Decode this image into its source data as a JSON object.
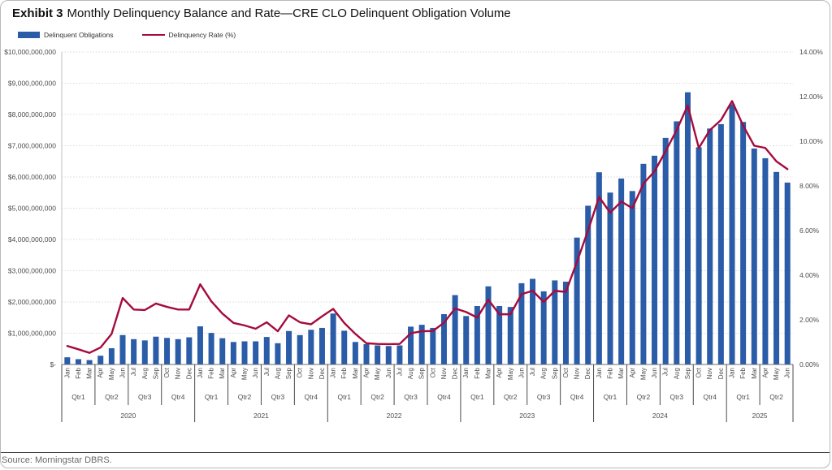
{
  "title": {
    "exhibit": "Exhibit 3",
    "text": "Monthly Delinquency Balance and Rate—CRE CLO Delinquent Obligation Volume"
  },
  "legend": {
    "items": [
      {
        "label": "Delinquent Obligations",
        "type": "bar",
        "color": "#2a5ca8"
      },
      {
        "label": "Delinquency Rate (%)",
        "type": "line",
        "color": "#a50b3d"
      }
    ]
  },
  "source": "Source: Morningstar DBRS.",
  "colors": {
    "bar": "#2a5ca8",
    "line": "#a50b3d",
    "gridline": "#dadada",
    "axis_line": "#8c8c8c",
    "separator": "#4a4a4a",
    "tick_text": "#4d4d4d"
  },
  "chart_data": {
    "type": "bar+line combo",
    "title": "Monthly Delinquency Balance and Rate—CRE CLO Delinquent Obligation Volume",
    "grid": "horizontal dotted",
    "legend_position": "top-left",
    "left_axis": {
      "unit": "USD",
      "min_billions": 0,
      "max_billions": 10,
      "ticks": [
        "$10,000,000,000",
        "$9,000,000,000",
        "$8,000,000,000",
        "$7,000,000,000",
        "$6,000,000,000",
        "$5,000,000,000",
        "$4,000,000,000",
        "$3,000,000,000",
        "$2,000,000,000",
        "$1,000,000,000",
        "$-"
      ]
    },
    "right_axis": {
      "unit": "%",
      "min_percent": 0,
      "max_percent": 14,
      "ticks": [
        "14.00%",
        "12.00%",
        "10.00%",
        "8.00%",
        "6.00%",
        "4.00%",
        "2.00%",
        "0.00%"
      ]
    },
    "years": [
      {
        "label": "2020",
        "quarters": [
          {
            "label": "Qtr1",
            "months": [
              "Jan",
              "Feb",
              "Mar"
            ]
          },
          {
            "label": "Qtr2",
            "months": [
              "Apr",
              "May",
              "Jun"
            ]
          },
          {
            "label": "Qtr3",
            "months": [
              "Jul",
              "Aug",
              "Sep"
            ]
          },
          {
            "label": "Qtr4",
            "months": [
              "Oct",
              "Nov",
              "Dec"
            ]
          }
        ]
      },
      {
        "label": "2021",
        "quarters": [
          {
            "label": "Qtr1",
            "months": [
              "Jan",
              "Feb",
              "Mar"
            ]
          },
          {
            "label": "Qtr2",
            "months": [
              "Apr",
              "May",
              "Jun"
            ]
          },
          {
            "label": "Qtr3",
            "months": [
              "Jul",
              "Aug",
              "Sep"
            ]
          },
          {
            "label": "Qtr4",
            "months": [
              "Oct",
              "Nov",
              "Dec"
            ]
          }
        ]
      },
      {
        "label": "2022",
        "quarters": [
          {
            "label": "Qtr1",
            "months": [
              "Jan",
              "Feb",
              "Mar"
            ]
          },
          {
            "label": "Qtr2",
            "months": [
              "Apr",
              "May",
              "Jun"
            ]
          },
          {
            "label": "Qtr3",
            "months": [
              "Jul",
              "Aug",
              "Sep"
            ]
          },
          {
            "label": "Qtr4",
            "months": [
              "Oct",
              "Nov",
              "Dec"
            ]
          }
        ]
      },
      {
        "label": "2023",
        "quarters": [
          {
            "label": "Qtr1",
            "months": [
              "Jan",
              "Feb",
              "Mar"
            ]
          },
          {
            "label": "Qtr2",
            "months": [
              "Apr",
              "May",
              "Jun"
            ]
          },
          {
            "label": "Qtr3",
            "months": [
              "Jul",
              "Aug",
              "Sep"
            ]
          },
          {
            "label": "Qtr4",
            "months": [
              "Oct",
              "Nov",
              "Dec"
            ]
          }
        ]
      },
      {
        "label": "2024",
        "quarters": [
          {
            "label": "Qtr1",
            "months": [
              "Jan",
              "Feb",
              "Mar"
            ]
          },
          {
            "label": "Qtr2",
            "months": [
              "Apr",
              "May",
              "Jun"
            ]
          },
          {
            "label": "Qtr3",
            "months": [
              "Jul",
              "Aug",
              "Sep"
            ]
          },
          {
            "label": "Qtr4",
            "months": [
              "Oct",
              "Nov",
              "Dec"
            ]
          }
        ]
      },
      {
        "label": "2025",
        "quarters": [
          {
            "label": "Qtr1",
            "months": [
              "Jan",
              "Feb",
              "Mar"
            ]
          },
          {
            "label": "Qtr2",
            "months": [
              "Apr",
              "May",
              "Jun"
            ]
          }
        ]
      }
    ],
    "series": [
      {
        "name": "Delinquent Obligations",
        "axis": "left",
        "unit": "USD billions",
        "values_billions": [
          0.23,
          0.17,
          0.14,
          0.28,
          0.52,
          0.94,
          0.81,
          0.77,
          0.89,
          0.85,
          0.81,
          0.87,
          1.22,
          1.01,
          0.84,
          0.72,
          0.74,
          0.74,
          0.88,
          0.68,
          1.07,
          0.94,
          1.11,
          1.17,
          1.63,
          1.08,
          0.72,
          0.65,
          0.61,
          0.59,
          0.61,
          1.21,
          1.27,
          1.17,
          1.61,
          2.22,
          1.55,
          1.87,
          2.5,
          1.87,
          1.84,
          2.6,
          2.74,
          2.34,
          2.69,
          2.65,
          4.06,
          5.08,
          6.15,
          5.5,
          5.95,
          5.55,
          6.42,
          6.68,
          7.25,
          7.78,
          8.71,
          6.95,
          7.55,
          7.69,
          8.33,
          7.76,
          6.91,
          6.6,
          6.16,
          5.82
        ]
      },
      {
        "name": "Delinquency Rate (%)",
        "axis": "right",
        "unit": "percent",
        "values_percent": [
          0.83,
          0.68,
          0.52,
          0.76,
          1.37,
          2.98,
          2.46,
          2.44,
          2.73,
          2.58,
          2.46,
          2.46,
          3.59,
          2.83,
          2.28,
          1.86,
          1.75,
          1.6,
          1.89,
          1.49,
          2.2,
          1.89,
          1.8,
          2.16,
          2.49,
          1.86,
          1.37,
          0.95,
          0.92,
          0.91,
          0.92,
          1.4,
          1.49,
          1.5,
          1.87,
          2.51,
          2.35,
          2.1,
          2.9,
          2.25,
          2.25,
          3.15,
          3.3,
          2.8,
          3.3,
          3.25,
          4.6,
          6.0,
          7.5,
          6.8,
          7.3,
          7.0,
          8.1,
          8.65,
          9.55,
          10.5,
          11.6,
          9.7,
          10.5,
          10.95,
          11.8,
          10.7,
          9.8,
          9.7,
          9.1,
          8.75
        ]
      }
    ]
  }
}
